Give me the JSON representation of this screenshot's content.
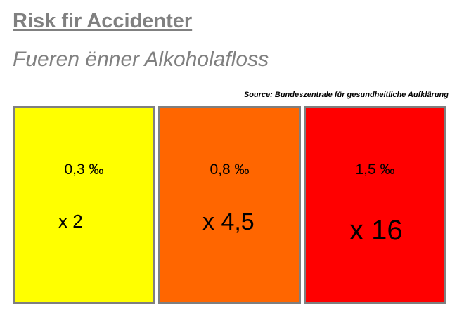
{
  "header": {
    "title": "Risk fir Accidenter",
    "subtitle": "Fueren ënner Alkoholafloss",
    "source": "Source: Bundeszentrale für gesundheitliche Aufklärung"
  },
  "boxes": [
    {
      "bac": "0,3 ‰",
      "factor": "x 2",
      "color": "#ffff00"
    },
    {
      "bac": "0,8 ‰",
      "factor": "x 4,5",
      "color": "#ff6600"
    },
    {
      "bac": "1,5 ‰",
      "factor": "x 16",
      "color": "#ff0000"
    }
  ]
}
